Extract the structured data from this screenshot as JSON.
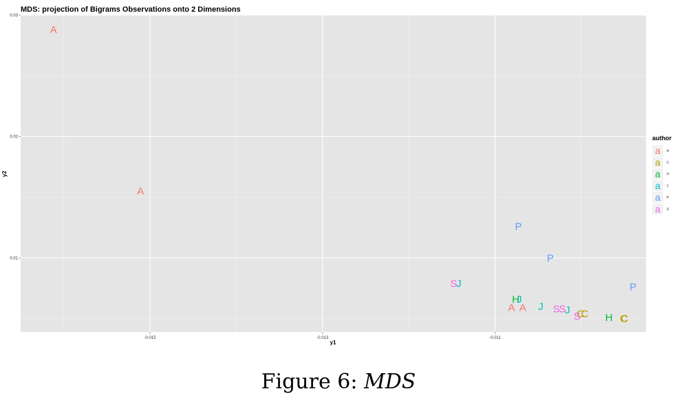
{
  "chart_data": {
    "type": "scatter",
    "title": "MDS: projection of Bigrams Observations onto 2 Dimensions",
    "xlabel": "y1",
    "ylabel": "y2",
    "xlim": [
      -0.0165,
      -0.00925
    ],
    "ylim": [
      0.0039,
      0.03
    ],
    "x_ticks": [
      -0.015,
      -0.013,
      -0.011
    ],
    "x_tick_labels": [
      "-0.015",
      "-0.013",
      "-0.011"
    ],
    "y_ticks": [
      0.01,
      0.02,
      0.03
    ],
    "y_tick_labels": [
      "0.01",
      "0.02",
      "0.03"
    ],
    "grid": true,
    "legend": {
      "title": "author",
      "placement": "right",
      "key_glyph": "a",
      "entries": [
        "A",
        "C",
        "H",
        "J",
        "P",
        "S"
      ]
    },
    "series": [
      {
        "name": "A",
        "color": "#F8766D",
        "points": [
          [
            -0.01612,
            0.0288
          ],
          [
            -0.01511,
            0.0155
          ],
          [
            -0.01081,
            0.0059
          ],
          [
            -0.01068,
            0.0059
          ]
        ]
      },
      {
        "name": "C",
        "color": "#B79F00",
        "points": [
          [
            -0.01001,
            0.0054
          ],
          [
            -0.00996,
            0.0054
          ],
          [
            -0.0095,
            0.005
          ],
          [
            -0.00951,
            0.005
          ]
        ]
      },
      {
        "name": "H",
        "color": "#00BA38",
        "points": [
          [
            -0.01076,
            0.0066
          ],
          [
            -0.00968,
            0.0051
          ]
        ]
      },
      {
        "name": "J",
        "color": "#00BFC4",
        "points": [
          [
            -0.01142,
            0.0079
          ],
          [
            -0.01072,
            0.0066
          ],
          [
            -0.01047,
            0.006
          ],
          [
            -0.01016,
            0.0057
          ]
        ]
      },
      {
        "name": "P",
        "color": "#619CFF",
        "points": [
          [
            -0.01073,
            0.0126
          ],
          [
            -0.01036,
            0.01
          ],
          [
            -0.0094,
            0.0076
          ]
        ]
      },
      {
        "name": "S",
        "color": "#F564E3",
        "points": [
          [
            -0.01148,
            0.0079
          ],
          [
            -0.01029,
            0.0058
          ],
          [
            -0.01022,
            0.0058
          ],
          [
            -0.01005,
            0.0052
          ]
        ]
      }
    ]
  },
  "caption": {
    "label": "Figure 6:",
    "name": "MDS"
  }
}
